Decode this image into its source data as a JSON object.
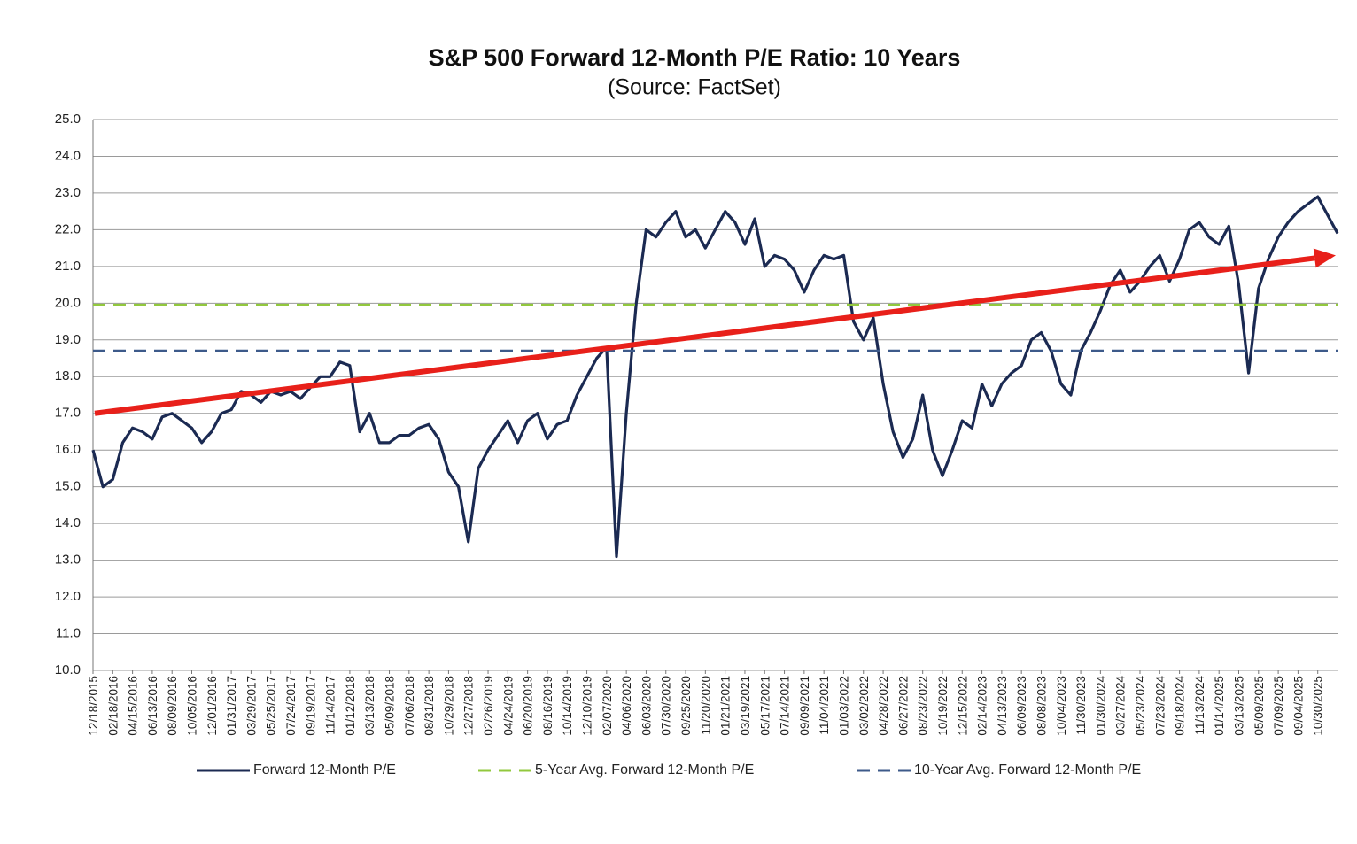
{
  "chart_data": {
    "type": "line",
    "title": "S&P 500 Forward 12-Month P/E Ratio: 10 Years",
    "subtitle": "(Source: FactSet)",
    "categories": [
      "12/18/2015",
      null,
      "02/18/2016",
      null,
      "04/15/2016",
      null,
      "06/13/2016",
      null,
      "08/09/2016",
      null,
      "10/05/2016",
      null,
      "12/01/2016",
      null,
      "01/31/2017",
      null,
      "03/29/2017",
      null,
      "05/25/2017",
      null,
      "07/24/2017",
      null,
      "09/19/2017",
      null,
      "11/14/2017",
      null,
      "01/12/2018",
      null,
      "03/13/2018",
      null,
      "05/09/2018",
      null,
      "07/06/2018",
      null,
      "08/31/2018",
      null,
      "10/29/2018",
      null,
      "12/27/2018",
      null,
      "02/26/2019",
      null,
      "04/24/2019",
      null,
      "06/20/2019",
      null,
      "08/16/2019",
      null,
      "10/14/2019",
      null,
      "12/10/2019",
      null,
      "02/07/2020",
      null,
      "04/06/2020",
      null,
      "06/03/2020",
      null,
      "07/30/2020",
      null,
      "09/25/2020",
      null,
      "11/20/2020",
      null,
      "01/21/2021",
      null,
      "03/19/2021",
      null,
      "05/17/2021",
      null,
      "07/14/2021",
      null,
      "09/09/2021",
      null,
      "11/04/2021",
      null,
      "01/03/2022",
      null,
      "03/02/2022",
      null,
      "04/28/2022",
      null,
      "06/27/2022",
      null,
      "08/23/2022",
      null,
      "10/19/2022",
      null,
      "12/15/2022",
      null,
      "02/14/2023",
      null,
      "04/13/2023",
      null,
      "06/09/2023",
      null,
      "08/08/2023",
      null,
      "10/04/2023",
      null,
      "11/30/2023",
      null,
      "01/30/2024",
      null,
      "03/27/2024",
      null,
      "05/23/2024",
      null,
      "07/23/2024",
      null,
      "09/18/2024",
      null,
      "11/13/2024",
      null,
      "01/14/2025",
      null,
      "03/13/2025",
      null,
      "05/09/2025",
      null,
      "07/09/2025",
      null,
      "09/04/2025",
      null,
      "10/30/2025",
      null,
      null
    ],
    "series": [
      {
        "name": "Forward 12-Month P/E",
        "color": "#1b2a52",
        "values": [
          16.0,
          15.0,
          15.2,
          16.2,
          16.6,
          16.5,
          16.3,
          16.9,
          17.0,
          16.8,
          16.6,
          16.2,
          16.5,
          17.0,
          17.1,
          17.6,
          17.5,
          17.3,
          17.6,
          17.5,
          17.6,
          17.4,
          17.7,
          18.0,
          18.0,
          18.4,
          18.3,
          16.5,
          17.0,
          16.2,
          16.2,
          16.4,
          16.4,
          16.6,
          16.7,
          16.3,
          15.4,
          15.0,
          13.5,
          15.5,
          16.0,
          16.4,
          16.8,
          16.2,
          16.8,
          17.0,
          16.3,
          16.7,
          16.8,
          17.5,
          18.0,
          18.5,
          18.8,
          13.1,
          17.0,
          20.0,
          22.0,
          21.8,
          22.2,
          22.5,
          21.8,
          22.0,
          21.5,
          22.0,
          22.5,
          22.2,
          21.6,
          22.3,
          21.0,
          21.3,
          21.2,
          20.9,
          20.3,
          20.9,
          21.3,
          21.2,
          21.3,
          19.5,
          19.0,
          19.6,
          17.8,
          16.5,
          15.8,
          16.3,
          17.5,
          16.0,
          15.3,
          16.0,
          16.8,
          16.6,
          17.8,
          17.2,
          17.8,
          18.1,
          18.3,
          19.0,
          19.2,
          18.7,
          17.8,
          17.5,
          18.7,
          19.2,
          19.8,
          20.5,
          20.9,
          20.3,
          20.6,
          21.0,
          21.3,
          20.6,
          21.2,
          22.0,
          22.2,
          21.8,
          21.6,
          22.1,
          20.5,
          18.1,
          20.4,
          21.2,
          21.8,
          22.2,
          22.5,
          22.7,
          22.9,
          22.4,
          21.9
        ]
      },
      {
        "name": "5-Year Avg. Forward 12-Month P/E",
        "color": "#92c83e",
        "value": 19.95,
        "dashed": true
      },
      {
        "name": "10-Year Avg. Forward 12-Month P/E",
        "color": "#3d5a8a",
        "value": 18.7,
        "dashed": true
      }
    ],
    "trend_line": {
      "color": "#e8201a",
      "values": [
        17.0,
        21.3
      ]
    },
    "ylim": [
      10,
      25
    ],
    "yticks": [
      {
        "value": 10,
        "label": "10.0"
      },
      {
        "value": 11,
        "label": "11.0"
      },
      {
        "value": 12,
        "label": "12.0"
      },
      {
        "value": 13,
        "label": "13.0"
      },
      {
        "value": 14,
        "label": "14.0"
      },
      {
        "value": 15,
        "label": "15.0"
      },
      {
        "value": 16,
        "label": "16.0"
      },
      {
        "value": 17,
        "label": "17.0"
      },
      {
        "value": 18,
        "label": "18.0"
      },
      {
        "value": 19,
        "label": "19.0"
      },
      {
        "value": 20,
        "label": "20.0"
      },
      {
        "value": 21,
        "label": "21.0"
      },
      {
        "value": 22,
        "label": "22.0"
      },
      {
        "value": 23,
        "label": "23.0"
      },
      {
        "value": 24,
        "label": "24.0"
      },
      {
        "value": 25,
        "label": "25.0"
      }
    ],
    "grid": true,
    "legend": "bottom"
  }
}
